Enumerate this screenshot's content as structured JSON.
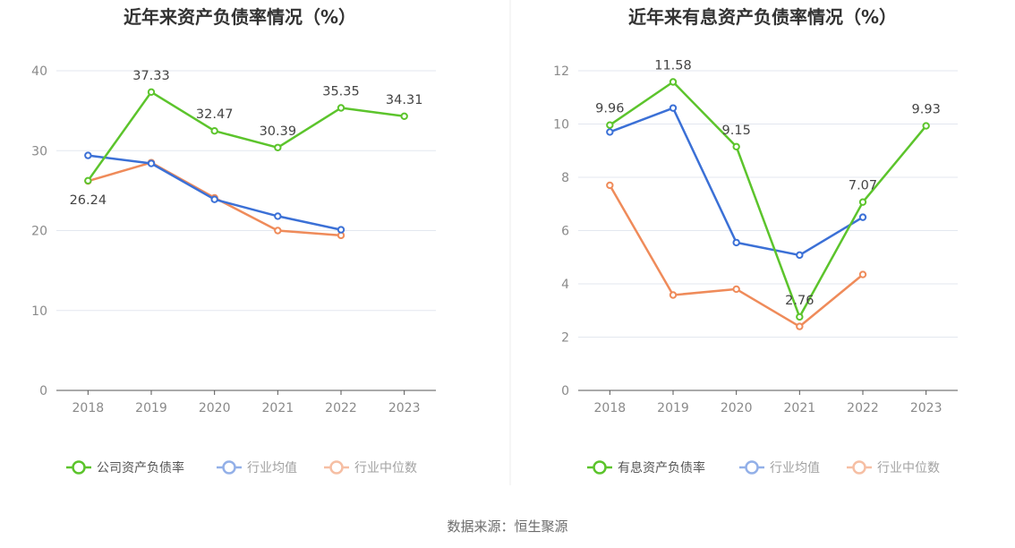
{
  "source": "数据来源：恒生聚源",
  "chart_data": [
    {
      "type": "line",
      "title": "近年来资产负债率情况（%）",
      "categories": [
        "2018",
        "2019",
        "2020",
        "2021",
        "2022",
        "2023"
      ],
      "ylim": [
        0,
        40
      ],
      "yticks": [
        0,
        10,
        20,
        30,
        40
      ],
      "grid": true,
      "legend_position": "bottom",
      "series": [
        {
          "name": "公司资产负债率",
          "color": "#5cc42c",
          "labeled": true,
          "values": [
            26.24,
            37.33,
            32.47,
            30.39,
            35.35,
            34.31
          ],
          "labels": [
            "26.24",
            "37.33",
            "32.47",
            "30.39",
            "35.35",
            "34.31"
          ]
        },
        {
          "name": "行业均值",
          "color": "#3b70d6",
          "labeled": false,
          "values": [
            29.4,
            28.4,
            23.9,
            21.8,
            20.1,
            null
          ]
        },
        {
          "name": "行业中位数",
          "color": "#ef8b5a",
          "labeled": false,
          "values": [
            26.2,
            28.5,
            24.1,
            20.0,
            19.4,
            null
          ]
        }
      ]
    },
    {
      "type": "line",
      "title": "近年来有息资产负债率情况（%）",
      "categories": [
        "2018",
        "2019",
        "2020",
        "2021",
        "2022",
        "2023"
      ],
      "ylim": [
        0,
        12
      ],
      "yticks": [
        0,
        2,
        4,
        6,
        8,
        10,
        12
      ],
      "grid": true,
      "legend_position": "bottom",
      "series": [
        {
          "name": "有息资产负债率",
          "color": "#5cc42c",
          "labeled": true,
          "values": [
            9.96,
            11.58,
            9.15,
            2.76,
            7.07,
            9.93
          ],
          "labels": [
            "9.96",
            "11.58",
            "9.15",
            "2.76",
            "7.07",
            "9.93"
          ]
        },
        {
          "name": "行业均值",
          "color": "#3b70d6",
          "labeled": false,
          "values": [
            9.7,
            10.6,
            5.55,
            5.08,
            6.5,
            null
          ]
        },
        {
          "name": "行业中位数",
          "color": "#ef8b5a",
          "labeled": false,
          "values": [
            7.7,
            3.58,
            3.8,
            2.4,
            4.35,
            null
          ]
        }
      ]
    }
  ]
}
